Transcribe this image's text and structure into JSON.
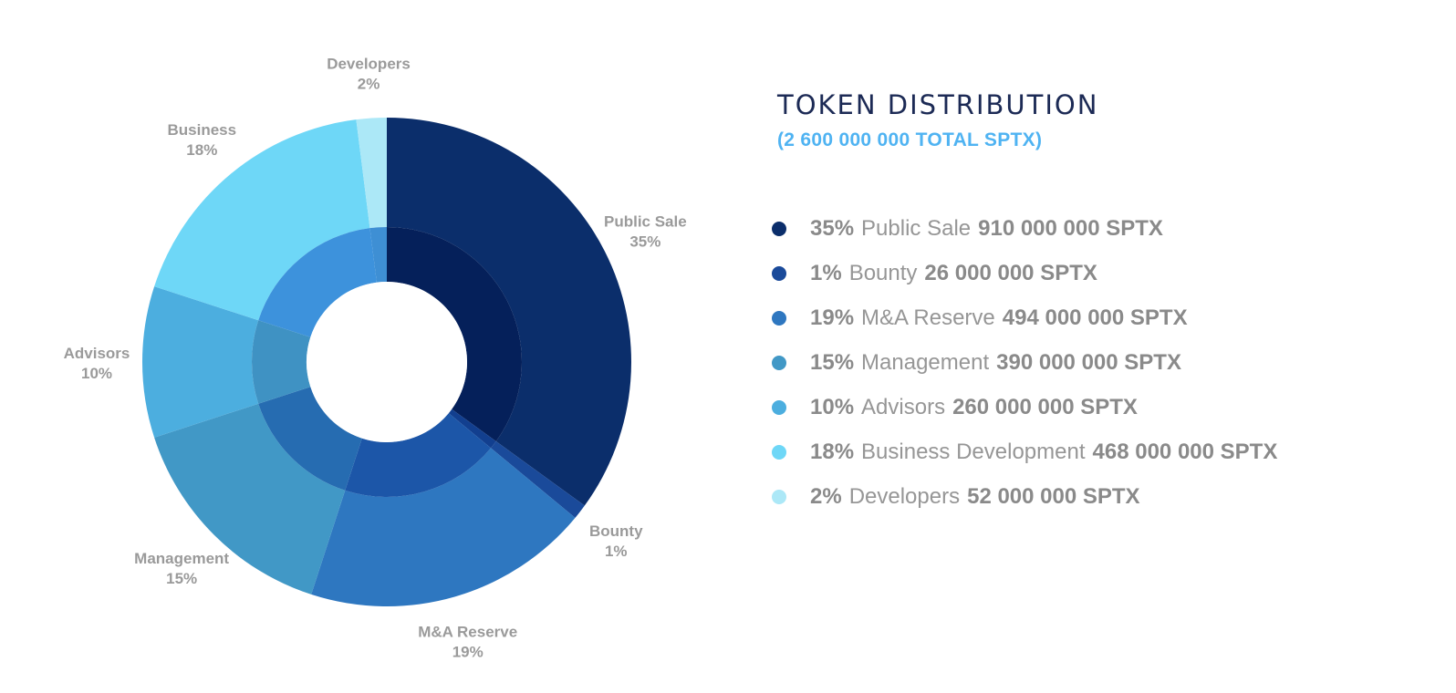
{
  "title": "TOKEN DISTRIBUTION",
  "subtitle": "(2 600 000 000 TOTAL SPTX)",
  "chart_data": {
    "type": "pie",
    "variant": "donut",
    "title": "TOKEN DISTRIBUTION",
    "total": "2 600 000 000 SPTX",
    "slices": [
      {
        "label": "Public Sale",
        "value": 35,
        "pct_text": "35%",
        "color": "#0b2e6b",
        "inner_color": "#05205a"
      },
      {
        "label": "Bounty",
        "value": 1,
        "pct_text": "1%",
        "color": "#1a4a9a",
        "inner_color": "#123f8f"
      },
      {
        "label": "M&A Reserve",
        "value": 19,
        "pct_text": "19%",
        "color": "#2e77c0",
        "inner_color": "#1c56a8"
      },
      {
        "label": "Management",
        "value": 15,
        "pct_text": "15%",
        "color": "#4198c6",
        "inner_color": "#266cb1"
      },
      {
        "label": "Advisors",
        "value": 10,
        "pct_text": "10%",
        "color": "#4caedf",
        "inner_color": "#3f92c3"
      },
      {
        "label": "Business",
        "value": 18,
        "pct_text": "18%",
        "color": "#6ed7f7",
        "inner_color": "#3d92dc"
      },
      {
        "label": "Developers",
        "value": 2,
        "pct_text": "2%",
        "color": "#ace8f7",
        "inner_color": "#3e8fd4"
      }
    ]
  },
  "legend": [
    {
      "pct": "35%",
      "name": "Public Sale",
      "amount": "910 000 000 SPTX",
      "color": "#0b2e6b"
    },
    {
      "pct": "1%",
      "name": "Bounty",
      "amount": "26 000 000 SPTX",
      "color": "#1a4a9a"
    },
    {
      "pct": "19%",
      "name": "M&A Reserve",
      "amount": "494 000 000 SPTX",
      "color": "#2e77c0"
    },
    {
      "pct": "15%",
      "name": "Management",
      "amount": "390 000 000 SPTX",
      "color": "#4198c6"
    },
    {
      "pct": "10%",
      "name": "Advisors",
      "amount": "260 000 000 SPTX",
      "color": "#4caedf"
    },
    {
      "pct": "18%",
      "name": "Business Development",
      "amount": "468 000 000 SPTX",
      "color": "#6ed7f7"
    },
    {
      "pct": "2%",
      "name": "Developers",
      "amount": "52 000 000 SPTX",
      "color": "#ace8f7"
    }
  ]
}
